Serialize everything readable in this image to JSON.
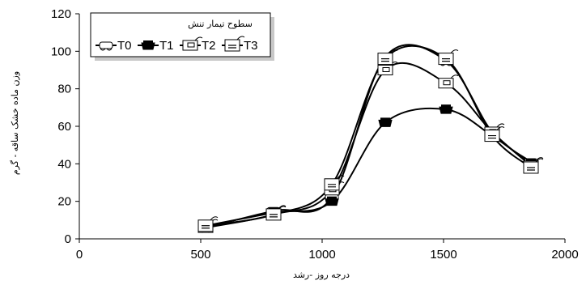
{
  "chart_data": {
    "type": "line",
    "xlabel": "درجه روز -رشد",
    "ylabel": "وزن ماده خشک ساقه - گرم",
    "xlim": [
      0,
      2000
    ],
    "ylim": [
      0,
      120
    ],
    "xticks": [
      0,
      500,
      1000,
      1500,
      2000
    ],
    "yticks": [
      0,
      20,
      40,
      60,
      80,
      100,
      120
    ],
    "grid": false,
    "legend": {
      "title": "سطوح تیمار تنش",
      "placement": "top-left",
      "entries": [
        "T0",
        "T1",
        "T2",
        "T3"
      ]
    },
    "series": [
      {
        "name": "T0",
        "x": [
          520,
          800,
          1040,
          1260,
          1510,
          1700,
          1860
        ],
        "y": [
          6,
          15,
          22,
          97,
          95,
          57,
          41
        ]
      },
      {
        "name": "T1",
        "x": [
          520,
          800,
          1040,
          1260,
          1510,
          1700,
          1860
        ],
        "y": [
          7,
          14,
          20,
          62,
          69,
          55,
          40
        ]
      },
      {
        "name": "T2",
        "x": [
          520,
          800,
          1040,
          1260,
          1510,
          1700,
          1860
        ],
        "y": [
          6,
          13,
          26,
          90,
          83,
          57,
          39
        ]
      },
      {
        "name": "T3",
        "x": [
          520,
          800,
          1040,
          1260,
          1510,
          1700,
          1860
        ],
        "y": [
          7,
          13,
          29,
          96,
          96,
          55,
          38
        ]
      }
    ]
  }
}
